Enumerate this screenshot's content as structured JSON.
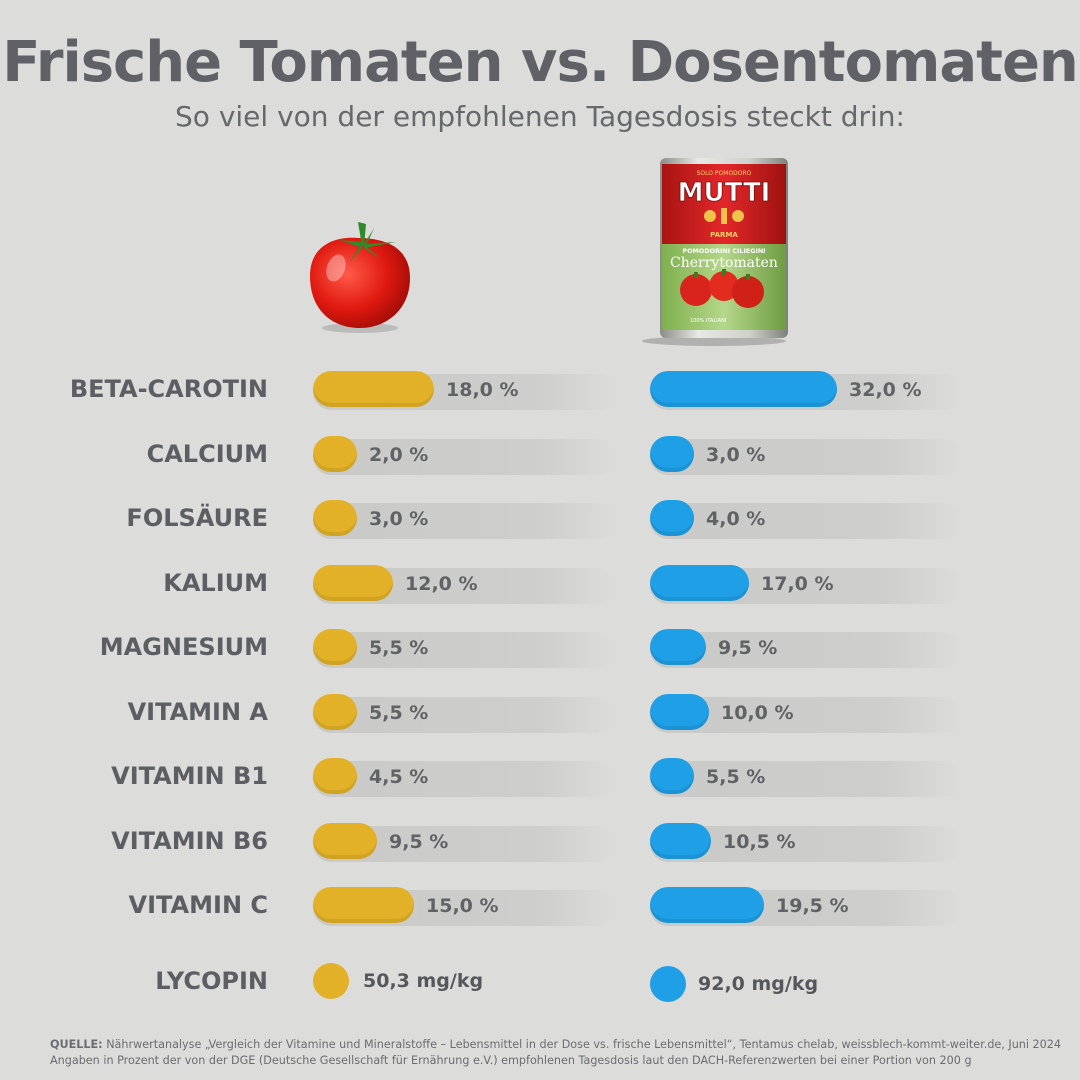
{
  "title": "Frische Tomaten vs. Dosentomaten",
  "subtitle": "So viel von der empfohlenen Tagesdosis steckt drin:",
  "can_label": {
    "top": "SOLO POMODORO",
    "brand": "MUTTI",
    "city": "PARMA",
    "variety": "POMODORINI CILIEGINI",
    "name": "Cherrytomaten",
    "origin": "100% ITALIANI"
  },
  "colors": {
    "fresh": "#e3b127",
    "canned": "#1e9fe6",
    "track": "#c9c9c7",
    "background": "#dcdcda"
  },
  "chart_data": {
    "type": "bar",
    "title": "Frische Tomaten vs. Dosentomaten",
    "subtitle": "So viel von der empfohlenen Tagesdosis steckt drin:",
    "categories": [
      "BETA-CAROTIN",
      "CALCIUM",
      "FOLSÄURE",
      "KALIUM",
      "MAGNESIUM",
      "VITAMIN A",
      "VITAMIN B1",
      "VITAMIN B6",
      "VITAMIN C"
    ],
    "series": [
      {
        "values": [
          18.0,
          2.0,
          3.0,
          12.0,
          5.5,
          5.5,
          4.5,
          9.5,
          15.0
        ],
        "labels": [
          "18,0 %",
          "2,0 %",
          "3,0 %",
          "12,0 %",
          "5,5 %",
          "5,5 %",
          "4,5 %",
          "9,5 %",
          "15,0 %"
        ]
      },
      {
        "values": [
          32.0,
          3.0,
          4.0,
          17.0,
          9.5,
          10.0,
          5.5,
          10.5,
          19.5
        ],
        "labels": [
          "32,0 %",
          "3,0 %",
          "4,0 %",
          "17,0 %",
          "9,5 %",
          "10,0 %",
          "5,5 %",
          "10,5 %",
          "19,5 %"
        ]
      }
    ],
    "unit": "%",
    "lycopin": {
      "label": "LYCOPIN",
      "fresh": 50.3,
      "canned": 92.0,
      "fresh_text": "50,3 mg/kg",
      "canned_text": "92,0 mg/kg",
      "unit": "mg/kg"
    }
  },
  "source": {
    "prefix": "QUELLE:",
    "line1": "Nährwertanalyse „Vergleich der Vitamine und Mineralstoffe – Lebensmittel in der Dose vs. frische Lebensmittel“, Tentamus chelab, weissblech-kommt-weiter.de, Juni 2024",
    "line2": "Angaben in Prozent der von der DGE (Deutsche Gesellschaft für Ernährung e.V.) empfohlenen Tagesdosis laut den DACH-Referenzwerten bei einer Portion von 200 g"
  }
}
